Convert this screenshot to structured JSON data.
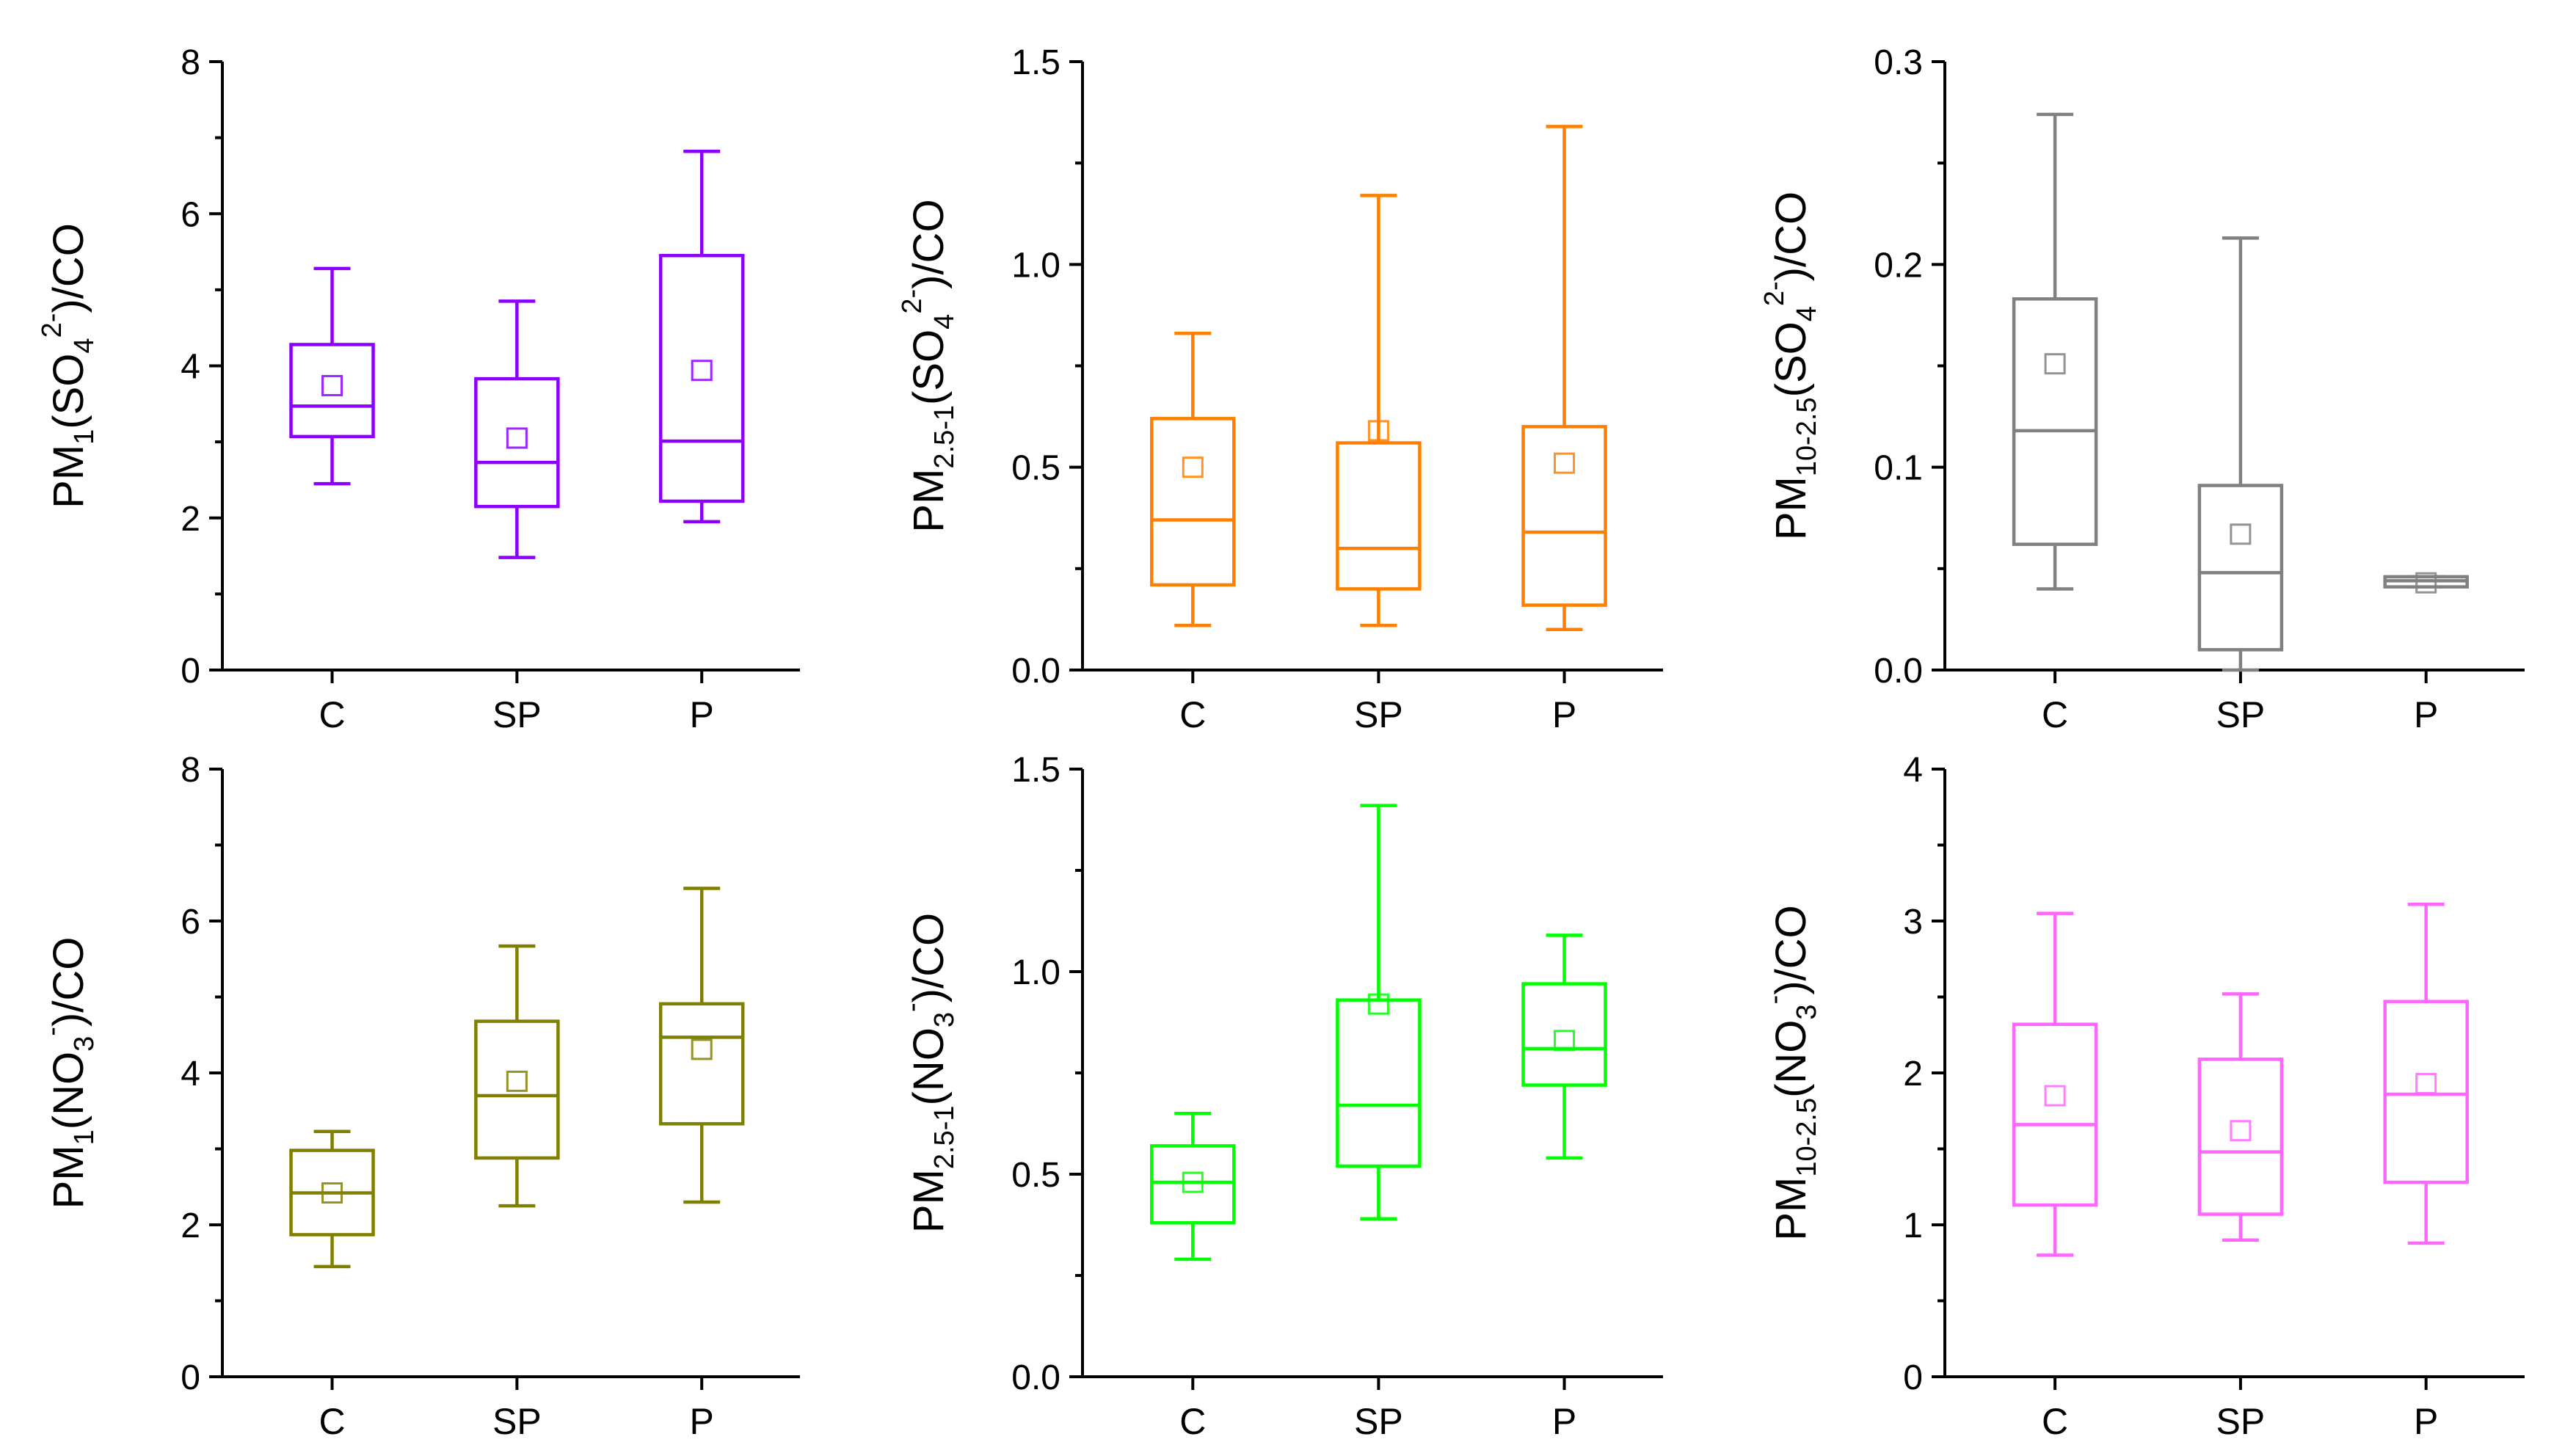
{
  "chart_data": [
    {
      "type": "box",
      "ylabel": {
        "base": "PM",
        "sub": "1",
        "mid": "(SO",
        "sub2": "4",
        "sup": "2-",
        "tail": ")/CO"
      },
      "color": "#8B00FF",
      "ylim": [
        0,
        8
      ],
      "yticks": [
        "0",
        "2",
        "4",
        "6",
        "8"
      ],
      "categories": [
        "C",
        "SP",
        "P"
      ],
      "boxes": [
        {
          "min": 2.45,
          "q1": 3.07,
          "median": 3.47,
          "q3": 4.28,
          "max": 5.28,
          "mean": 3.74
        },
        {
          "min": 1.48,
          "q1": 2.15,
          "median": 2.73,
          "q3": 3.83,
          "max": 4.85,
          "mean": 3.05
        },
        {
          "min": 1.95,
          "q1": 2.22,
          "median": 3.01,
          "q3": 5.45,
          "max": 6.82,
          "mean": 3.94
        }
      ]
    },
    {
      "type": "box",
      "ylabel": {
        "base": "PM",
        "sub": "2.5-1",
        "mid": "(SO",
        "sub2": "4",
        "sup": "2-",
        "tail": ")/CO"
      },
      "color": "#FF7F00",
      "ylim": [
        0,
        1.5
      ],
      "yticks": [
        "0.0",
        "0.5",
        "1.0",
        "1.5"
      ],
      "categories": [
        "C",
        "SP",
        "P"
      ],
      "boxes": [
        {
          "min": 0.11,
          "q1": 0.21,
          "median": 0.37,
          "q3": 0.62,
          "max": 0.83,
          "mean": 0.5
        },
        {
          "min": 0.11,
          "q1": 0.2,
          "median": 0.3,
          "q3": 0.56,
          "max": 1.17,
          "mean": 0.59
        },
        {
          "min": 0.1,
          "q1": 0.16,
          "median": 0.34,
          "q3": 0.6,
          "max": 1.34,
          "mean": 0.51
        }
      ]
    },
    {
      "type": "box",
      "ylabel": {
        "base": "PM",
        "sub": "10-2.5",
        "mid": "(SO",
        "sub2": "4",
        "sup": "2-",
        "tail": ")/CO"
      },
      "color": "#808080",
      "ylim": [
        0,
        0.3
      ],
      "yticks": [
        "0.0",
        "0.1",
        "0.2",
        "0.3"
      ],
      "categories": [
        "C",
        "SP",
        "P"
      ],
      "boxes": [
        {
          "min": 0.04,
          "q1": 0.062,
          "median": 0.118,
          "q3": 0.183,
          "max": 0.274,
          "mean": 0.151
        },
        {
          "min": 0.0,
          "q1": 0.01,
          "median": 0.048,
          "q3": 0.091,
          "max": 0.213,
          "mean": 0.067
        },
        {
          "min": 0.041,
          "q1": 0.041,
          "median": 0.044,
          "q3": 0.046,
          "max": 0.046,
          "mean": 0.043
        }
      ]
    },
    {
      "type": "box",
      "ylabel": {
        "base": "PM",
        "sub": "1",
        "mid": "(NO",
        "sub2": "3",
        "sup": "-",
        "tail": ")/CO"
      },
      "color": "#808000",
      "ylim": [
        0,
        8
      ],
      "yticks": [
        "0",
        "2",
        "4",
        "6",
        "8"
      ],
      "categories": [
        "C",
        "SP",
        "P"
      ],
      "boxes": [
        {
          "min": 1.45,
          "q1": 1.87,
          "median": 2.42,
          "q3": 2.98,
          "max": 3.23,
          "mean": 2.42
        },
        {
          "min": 2.25,
          "q1": 2.88,
          "median": 3.7,
          "q3": 4.68,
          "max": 5.67,
          "mean": 3.89
        },
        {
          "min": 2.3,
          "q1": 3.33,
          "median": 4.47,
          "q3": 4.91,
          "max": 6.43,
          "mean": 4.31
        }
      ]
    },
    {
      "type": "box",
      "ylabel": {
        "base": "PM",
        "sub": "2.5-1",
        "mid": "(NO",
        "sub2": "3",
        "sup": "-",
        "tail": ")/CO"
      },
      "color": "#00FF00",
      "ylim": [
        0,
        1.5
      ],
      "yticks": [
        "0.0",
        "0.5",
        "1.0",
        "1.5"
      ],
      "categories": [
        "C",
        "SP",
        "P"
      ],
      "boxes": [
        {
          "min": 0.29,
          "q1": 0.38,
          "median": 0.48,
          "q3": 0.57,
          "max": 0.65,
          "mean": 0.48
        },
        {
          "min": 0.39,
          "q1": 0.52,
          "median": 0.67,
          "q3": 0.93,
          "max": 1.41,
          "mean": 0.92
        },
        {
          "min": 0.54,
          "q1": 0.72,
          "median": 0.81,
          "q3": 0.97,
          "max": 1.09,
          "mean": 0.83
        }
      ]
    },
    {
      "type": "box",
      "ylabel": {
        "base": "PM",
        "sub": "10-2.5",
        "mid": "(NO",
        "sub2": "3",
        "sup": "-",
        "tail": ")/CO"
      },
      "color": "#FF66FF",
      "ylim": [
        0,
        4
      ],
      "yticks": [
        "0",
        "1",
        "2",
        "3",
        "4"
      ],
      "categories": [
        "C",
        "SP",
        "P"
      ],
      "boxes": [
        {
          "min": 0.8,
          "q1": 1.13,
          "median": 1.66,
          "q3": 2.32,
          "max": 3.05,
          "mean": 1.85
        },
        {
          "min": 0.9,
          "q1": 1.07,
          "median": 1.48,
          "q3": 2.09,
          "max": 2.52,
          "mean": 1.62
        },
        {
          "min": 0.88,
          "q1": 1.28,
          "median": 1.86,
          "q3": 2.47,
          "max": 3.11,
          "mean": 1.93
        }
      ]
    }
  ]
}
